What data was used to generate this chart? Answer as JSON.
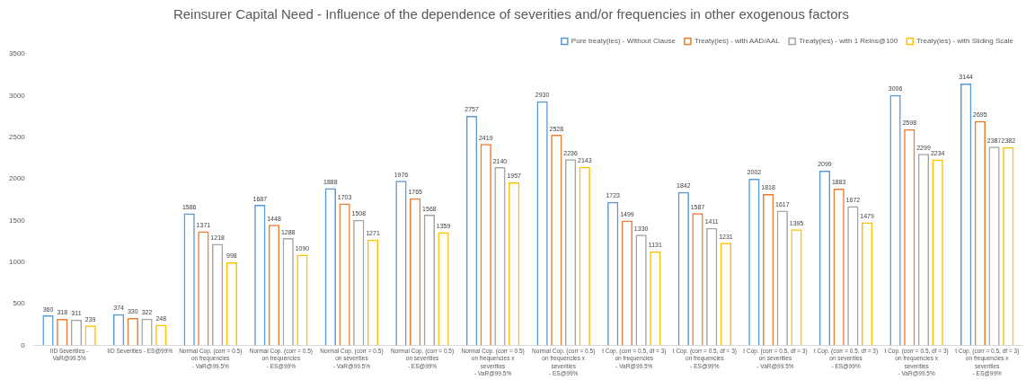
{
  "chart_data": {
    "type": "bar",
    "title": "Reinsurer Capital Need - Influence of the dependence of severities and/or frequencies in other exogenous factors",
    "categories": [
      "IID Severities -\nVaR@99.5%",
      "IID Severities - ES@99%",
      "Normal Cop. (corr = 0.5)\non frequencies\n- VaR@99.5%",
      "Normal Cop. (corr = 0.5)\non frequencies\n- ES@99%",
      "Normal Cop. (corr = 0.5)\non severities\n- VaR@99.5%",
      "Normal Cop. (corr = 0.5)\non severities\n- ES@99%",
      "Normal Cop. (corr = 0.5)\non frequencies x\nseverities\n- VaR@99.5%",
      "Normal Cop. (corr = 0.5)\non frequencies x\nseverities\n- ES@99%",
      "t Cop. (corr = 0.5, df = 3)\non frequencies\n- VaR@99.5%",
      "t Cop. (corr = 0.5, df = 3)\non frequencies\n- ES@99%",
      "t Cop. (corr = 0.5, df = 3)\non severities\n- VaR@99.5%",
      "t Cop. (corr = 0.5, df = 3)\non severities\n- ES@99%",
      "t Cop. (corr = 0.5, df = 3)\non frequencies x\nseverities\n- VaR@99.5%",
      "t Cop. (corr = 0.5, df = 3)\non frequencies x\nseverities\n- ES@99%"
    ],
    "series": [
      {
        "name": "Pure treaty(ies) - Without Clause",
        "color": "#5b9bd5",
        "values": [
          360,
          374,
          1586,
          1687,
          1888,
          1976,
          2757,
          2930,
          1723,
          1842,
          2002,
          2099,
          3006,
          3144
        ]
      },
      {
        "name": "Treaty(ies) - with AAD/AAL",
        "color": "#ed7d31",
        "values": [
          318,
          330,
          1371,
          1448,
          1703,
          1765,
          2419,
          2528,
          1499,
          1587,
          1818,
          1883,
          2598,
          2695
        ]
      },
      {
        "name": "Treaty(ies) - with 1 Reins@100",
        "color": "#a5a5a5",
        "values": [
          311,
          322,
          1218,
          1288,
          1508,
          1568,
          2140,
          2236,
          1330,
          1411,
          1617,
          1672,
          2299,
          2387
        ]
      },
      {
        "name": "Treaty(ies) - with Sliding Scale",
        "color": "#ffc000",
        "values": [
          239,
          248,
          998,
          1090,
          1271,
          1359,
          1957,
          2143,
          1131,
          1231,
          1395,
          1479,
          2234,
          2382
        ]
      }
    ],
    "ylim": [
      0,
      3500
    ],
    "yticks": [
      0,
      500,
      1000,
      1500,
      2000,
      2500,
      3000,
      3500
    ],
    "grid": false,
    "legend": "top",
    "data_labels": true
  }
}
